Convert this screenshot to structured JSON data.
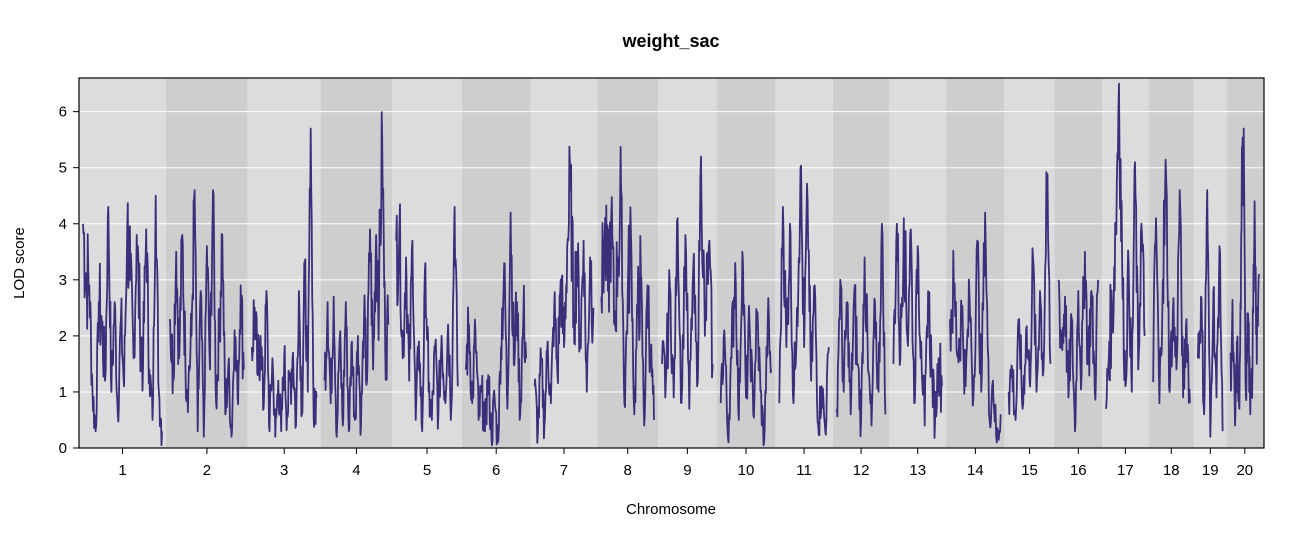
{
  "chart_data": {
    "type": "line",
    "title": "weight_sac",
    "xlabel": "Chromosome",
    "ylabel": "LOD score",
    "ylim": [
      0,
      6.6
    ],
    "yticks": [
      0,
      1,
      2,
      3,
      4,
      5,
      6
    ],
    "grid": "horizontal, white lines",
    "legend": "none",
    "background_colors": {
      "light": "#dcdcdc",
      "dark": "#cecece"
    },
    "line_color": "#3a2f7a",
    "categories": [
      "1",
      "2",
      "3",
      "4",
      "5",
      "6",
      "7",
      "8",
      "9",
      "10",
      "11",
      "12",
      "13",
      "14",
      "15",
      "16",
      "17",
      "18",
      "19",
      "20"
    ],
    "series": [
      {
        "chromosomes": [
          {
            "name": "1",
            "length": 195,
            "values": [
              4.0,
              3.1,
              2.9,
              1.0,
              0.3,
              2.6,
              2.2,
              1.2,
              4.3,
              1.0,
              2.6,
              0.6,
              2.3,
              1.1,
              4.0,
              3.0,
              1.6,
              3.8,
              2.2,
              1.5,
              3.9,
              1.4,
              0.5,
              4.5,
              1.0,
              0.3
            ]
          },
          {
            "name": "2",
            "length": 182,
            "values": [
              2.3,
              1.3,
              3.5,
              1.6,
              3.8,
              1.5,
              1.2,
              2.0,
              4.6,
              0.3,
              2.8,
              0.2,
              3.6,
              1.4,
              4.6,
              0.8,
              2.2,
              3.8,
              0.6,
              1.5,
              0.2,
              2.1,
              0.9,
              2.9,
              1.4
            ]
          },
          {
            "name": "3",
            "length": 160,
            "values": [
              1.8,
              2.5,
              1.3,
              2.0,
              0.7,
              2.8,
              0.3,
              1.6,
              0.2,
              1.2,
              0.3,
              1.6,
              0.6,
              1.2,
              1.7,
              0.4,
              2.8,
              0.6,
              3.3,
              1.0,
              5.7,
              0.5,
              0.9
            ]
          },
          {
            "name": "4",
            "length": 157,
            "values": [
              1.2,
              2.6,
              0.8,
              2.7,
              0.2,
              2.0,
              0.4,
              2.6,
              0.3,
              1.9,
              0.5,
              2.0,
              0.4,
              2.3,
              1.2,
              3.9,
              1.4,
              3.8,
              2.8,
              5.5,
              1.8,
              2.2
            ]
          },
          {
            "name": "5",
            "length": 152,
            "values": [
              3.7,
              4.0,
              1.6,
              3.4,
              1.2,
              3.7,
              0.5,
              1.9,
              0.3,
              3.3,
              1.0,
              0.5,
              1.8,
              0.6,
              2.0,
              1.0,
              2.2,
              0.7,
              4.3,
              1.1
            ]
          },
          {
            "name": "6",
            "length": 150,
            "values": [
              1.4,
              2.2,
              0.8,
              2.1,
              0.5,
              1.0,
              0.3,
              1.3,
              0.2,
              0.9,
              0.1,
              1.8,
              3.3,
              0.7,
              4.2,
              1.5,
              2.6,
              0.6,
              2.4,
              1.6
            ]
          },
          {
            "name": "7",
            "length": 145,
            "values": [
              1.1,
              0.3,
              1.6,
              0.4,
              1.9,
              0.8,
              2.5,
              1.3,
              3.0,
              1.8,
              3.6,
              4.6,
              2.4,
              3.5,
              1.8,
              3.7,
              1.0,
              3.4,
              2.5
            ]
          },
          {
            "name": "8",
            "length": 130,
            "values": [
              2.7,
              3.8,
              2.8,
              4.1,
              2.2,
              3.4,
              4.6,
              0.8,
              2.7,
              3.8,
              0.6,
              2.4,
              3.1,
              0.4,
              2.9,
              1.7,
              0.5
            ]
          },
          {
            "name": "9",
            "length": 125,
            "values": [
              1.5,
              1.2,
              2.9,
              0.9,
              4.1,
              0.8,
              3.8,
              0.7,
              3.2,
              1.1,
              5.2,
              2.0,
              3.6,
              1.5
            ]
          },
          {
            "name": "10",
            "length": 125,
            "values": [
              0.8,
              2.1,
              0.2,
              1.6,
              3.3,
              0.5,
              3.5,
              0.9,
              2.2,
              0.6,
              2.4,
              1.0,
              0.1,
              2.2,
              1.4
            ]
          },
          {
            "name": "11",
            "length": 122,
            "values": [
              0.8,
              4.3,
              1.8,
              4.0,
              0.8,
              2.5,
              5.0,
              1.8,
              4.4,
              1.2,
              2.9,
              0.4,
              1.1,
              0.3,
              1.8
            ]
          },
          {
            "name": "12",
            "length": 120,
            "values": [
              0.7,
              3.0,
              1.0,
              2.6,
              0.6,
              2.7,
              1.5,
              0.5,
              3.4,
              1.4,
              0.4,
              2.6,
              1.0,
              4.0,
              0.6
            ]
          },
          {
            "name": "13",
            "length": 120,
            "values": [
              1.5,
              4.0,
              1.6,
              4.1,
              2.0,
              3.9,
              0.8,
              3.6,
              1.9,
              0.4,
              2.8,
              1.4,
              0.5,
              1.6,
              1.1
            ]
          },
          {
            "name": "14",
            "length": 125,
            "values": [
              2.3,
              2.8,
              1.7,
              2.5,
              1.1,
              2.7,
              0.9,
              3.7,
              1.0,
              4.2,
              0.6,
              1.2,
              0.1,
              0.6
            ]
          },
          {
            "name": "15",
            "length": 103,
            "values": [
              1.0,
              1.4,
              0.5,
              2.3,
              0.7,
              2.1,
              1.2,
              3.4,
              1.0,
              2.8,
              1.4,
              4.8,
              1.5
            ]
          },
          {
            "name": "16",
            "length": 98,
            "values": [
              3.0,
              1.8,
              2.7,
              0.9,
              2.3,
              0.3,
              2.8,
              1.3,
              3.5,
              1.5,
              2.8,
              1.0,
              3.0
            ]
          },
          {
            "name": "17",
            "length": 95,
            "values": [
              0.7,
              1.9,
              2.5,
              4.0,
              6.5,
              3.2,
              1.1,
              3.3,
              1.0,
              5.1,
              1.4,
              4.0,
              2.0
            ]
          },
          {
            "name": "18",
            "length": 92,
            "values": [
              1.2,
              4.1,
              0.8,
              3.0,
              4.8,
              1.0,
              2.5,
              1.4,
              4.6,
              0.9,
              2.3,
              0.8
            ]
          },
          {
            "name": "19",
            "length": 61,
            "values": [
              1.6,
              2.7,
              0.6,
              4.6,
              0.2,
              2.8,
              0.9,
              3.6,
              0.3
            ]
          },
          {
            "name": "20",
            "length": 70,
            "values": [
              1.7,
              2.0,
              0.4,
              1.8,
              0.7,
              3.9,
              5.7,
              0.9,
              2.4,
              0.6,
              1.4,
              4.4,
              1.5,
              3.1
            ]
          }
        ]
      }
    ]
  }
}
